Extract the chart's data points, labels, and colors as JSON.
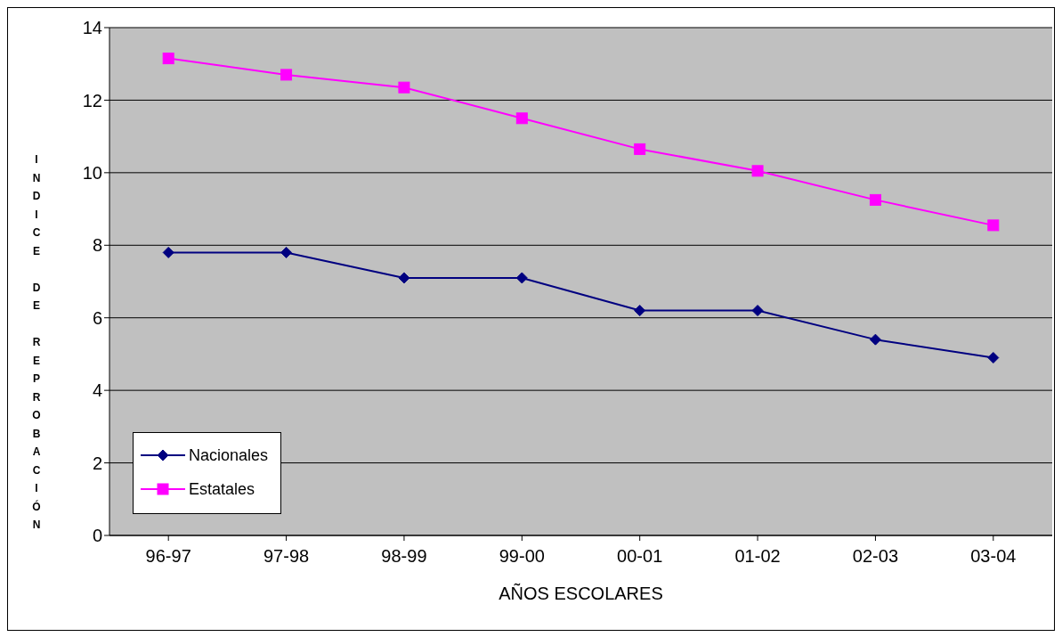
{
  "chart_data": {
    "type": "line",
    "xlabel": "AÑOS ESCOLARES",
    "ylabel": "INDICE DE REPROBACIÓN",
    "categories": [
      "96-97",
      "97-98",
      "98-99",
      "99-00",
      "00-01",
      "01-02",
      "02-03",
      "03-04"
    ],
    "series": [
      {
        "name": "Nacionales",
        "color": "#000080",
        "marker": "diamond",
        "values": [
          7.8,
          7.8,
          7.1,
          7.1,
          6.2,
          6.2,
          5.4,
          4.9
        ]
      },
      {
        "name": "Estatales",
        "color": "#ff00ff",
        "marker": "square",
        "values": [
          13.15,
          12.7,
          12.35,
          11.5,
          10.65,
          10.05,
          9.25,
          8.55
        ]
      }
    ],
    "ylim": [
      0,
      14
    ],
    "yticks": [
      0,
      2,
      4,
      6,
      8,
      10,
      12,
      14
    ],
    "grid": "y",
    "legend": "bottom left",
    "line_style": "solid"
  }
}
